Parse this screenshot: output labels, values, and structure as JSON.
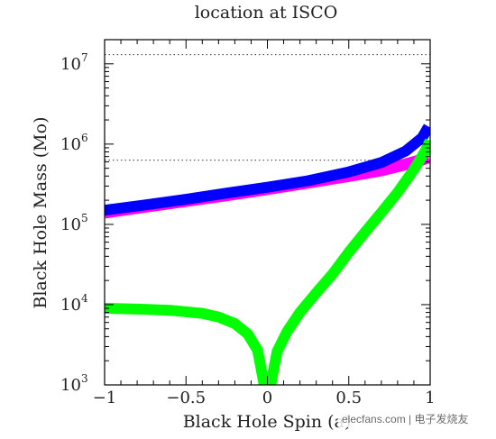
{
  "chart_data": {
    "type": "line",
    "title": "location at ISCO",
    "xlabel": "Black Hole Spin (a)",
    "ylabel": "Black Hole Mass (Mo)",
    "xlim": [
      -1,
      1
    ],
    "ylim": [
      1000,
      20000000
    ],
    "yscale": "log",
    "x_ticks": [
      "−1",
      "−0.5",
      "0",
      "0.5",
      "1"
    ],
    "y_ticks": [
      {
        "base": "10",
        "exp": "3"
      },
      {
        "base": "10",
        "exp": "4"
      },
      {
        "base": "10",
        "exp": "5"
      },
      {
        "base": "10",
        "exp": "6"
      },
      {
        "base": "10",
        "exp": "7"
      }
    ],
    "reference_lines": [
      {
        "y": 13000000,
        "style": "dotted"
      },
      {
        "y": 630000,
        "style": "dotted"
      }
    ],
    "series": [
      {
        "color": "#ff00ff",
        "x": [
          -1,
          -0.75,
          -0.5,
          -0.25,
          0,
          0.25,
          0.5,
          0.7,
          0.85,
          0.95,
          0.99
        ],
        "y": [
          140000,
          165000,
          195000,
          230000,
          275000,
          330000,
          400000,
          470000,
          560000,
          640000,
          680000
        ]
      },
      {
        "color": "#0000ff",
        "x": [
          -1,
          -0.75,
          -0.5,
          -0.25,
          0,
          0.25,
          0.5,
          0.7,
          0.85,
          0.95,
          0.99
        ],
        "y": [
          150000,
          175000,
          205000,
          245000,
          290000,
          350000,
          450000,
          590000,
          820000,
          1200000,
          1650000
        ]
      },
      {
        "color": "#00ff00",
        "x": [
          -1,
          -0.8,
          -0.6,
          -0.4,
          -0.3,
          -0.2,
          -0.12,
          -0.06,
          -0.02,
          0.02,
          0.06,
          0.12,
          0.2,
          0.3,
          0.4,
          0.5,
          0.6,
          0.7,
          0.8,
          0.9,
          0.97,
          1.0
        ],
        "y": [
          9000,
          8800,
          8500,
          7800,
          7000,
          5800,
          4300,
          2700,
          1000,
          1000,
          2600,
          4600,
          8000,
          14000,
          24000,
          45000,
          80000,
          140000,
          250000,
          480000,
          820000,
          1100000
        ]
      }
    ]
  },
  "watermark": "elecfans.com | 电子发烧友"
}
